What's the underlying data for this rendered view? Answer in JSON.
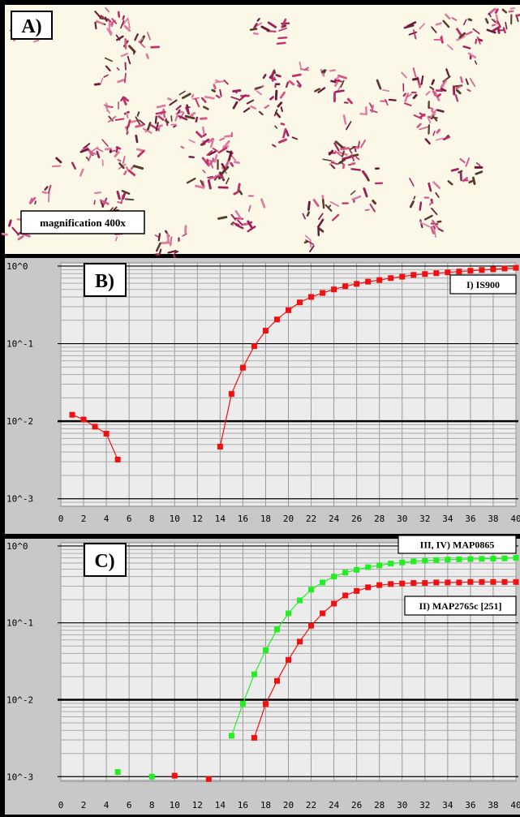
{
  "panel_a": {
    "label": "A)",
    "caption": "magnification 400x"
  },
  "chart_data": [
    {
      "type": "line",
      "panel_label": "B)",
      "log_y": true,
      "grid": true,
      "legend": "upper right",
      "ylim": [
        0.0008,
        1.1
      ],
      "yticks": [
        {
          "value": 1,
          "label": "10^0"
        },
        {
          "value": 0.1,
          "label": "10^-1"
        },
        {
          "value": 0.01,
          "label": "10^-2"
        },
        {
          "value": 0.001,
          "label": "10^-3"
        }
      ],
      "xlim": [
        0,
        40
      ],
      "xticks": [
        0,
        2,
        4,
        6,
        8,
        10,
        12,
        14,
        16,
        18,
        20,
        22,
        24,
        26,
        28,
        30,
        32,
        34,
        36,
        38,
        40
      ],
      "x": [
        1,
        2,
        3,
        4,
        5,
        6,
        7,
        8,
        9,
        10,
        11,
        12,
        13,
        14,
        15,
        16,
        17,
        18,
        19,
        20,
        21,
        22,
        23,
        24,
        25,
        26,
        27,
        28,
        29,
        30,
        31,
        32,
        33,
        34,
        35,
        36,
        37,
        38,
        39,
        40
      ],
      "series": [
        {
          "name": "I) IS900",
          "color": "#ee1111",
          "values": [
            0.0121,
            0.0105,
            0.0085,
            0.0069,
            0.0032,
            null,
            null,
            null,
            null,
            null,
            null,
            null,
            null,
            0.0047,
            0.0225,
            0.049,
            0.093,
            0.147,
            0.205,
            0.27,
            0.34,
            0.4,
            0.45,
            0.5,
            0.55,
            0.59,
            0.63,
            0.66,
            0.7,
            0.73,
            0.77,
            0.79,
            0.81,
            0.83,
            0.85,
            0.87,
            0.89,
            0.91,
            0.93,
            0.95
          ]
        }
      ]
    },
    {
      "type": "line",
      "panel_label": "C)",
      "log_y": true,
      "grid": true,
      "legend": "upper right",
      "ylim": [
        0.00087,
        1.1
      ],
      "yticks": [
        {
          "value": 1,
          "label": "10^0"
        },
        {
          "value": 0.1,
          "label": "10^-1"
        },
        {
          "value": 0.01,
          "label": "10^-2"
        },
        {
          "value": 0.001,
          "label": "10^-3"
        }
      ],
      "xlim": [
        0,
        40
      ],
      "xticks": [
        0,
        2,
        4,
        6,
        8,
        10,
        12,
        14,
        16,
        18,
        20,
        22,
        24,
        26,
        28,
        30,
        32,
        34,
        36,
        38,
        40
      ],
      "x": [
        5,
        6,
        7,
        8,
        9,
        10,
        11,
        12,
        13,
        14,
        15,
        16,
        17,
        18,
        19,
        20,
        21,
        22,
        23,
        24,
        25,
        26,
        27,
        28,
        29,
        30,
        31,
        32,
        33,
        34,
        35,
        36,
        37,
        38,
        39,
        40
      ],
      "series": [
        {
          "name": "III, IV) MAP0865",
          "color": "#22ee22",
          "values": [
            0.00115,
            null,
            null,
            0.001,
            null,
            null,
            null,
            null,
            null,
            null,
            0.0034,
            0.0089,
            0.0214,
            0.044,
            0.082,
            0.133,
            0.196,
            0.27,
            0.335,
            0.4,
            0.45,
            0.49,
            0.53,
            0.56,
            0.59,
            0.61,
            0.63,
            0.645,
            0.655,
            0.665,
            0.67,
            0.675,
            0.68,
            0.685,
            0.69,
            0.7
          ]
        },
        {
          "name": "II) MAP2765c [251]",
          "color": "#ee1111",
          "values": [
            null,
            null,
            null,
            null,
            null,
            0.00103,
            null,
            null,
            0.00093,
            null,
            null,
            null,
            0.0032,
            0.0088,
            0.0176,
            0.033,
            0.057,
            0.092,
            0.133,
            0.178,
            0.227,
            0.26,
            0.29,
            0.31,
            0.32,
            0.325,
            0.33,
            0.33,
            0.335,
            0.335,
            0.335,
            0.34,
            0.34,
            0.34,
            0.34,
            0.34
          ]
        }
      ]
    }
  ]
}
